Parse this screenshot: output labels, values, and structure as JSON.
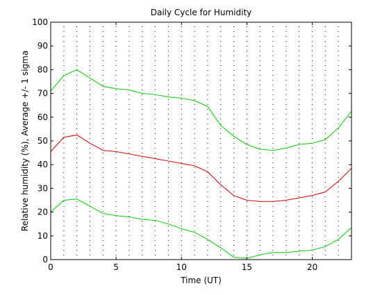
{
  "chart_data": {
    "type": "line",
    "title": "Daily Cycle for Humidity",
    "xlabel": "Time (UT)",
    "ylabel": "Relative humidity (%), Average +/- 1 sigma",
    "xlim": [
      0,
      23
    ],
    "ylim": [
      0,
      100
    ],
    "xticks": [
      0,
      5,
      10,
      15,
      20
    ],
    "yticks": [
      0,
      10,
      20,
      30,
      40,
      50,
      60,
      70,
      80,
      90,
      100
    ],
    "grid": false,
    "scatter_overlay": "dotted vertical column of samples at each hour",
    "x": [
      0,
      1,
      2,
      3,
      4,
      5,
      6,
      7,
      8,
      9,
      10,
      11,
      12,
      13,
      14,
      15,
      16,
      17,
      18,
      19,
      20,
      21,
      22,
      23
    ],
    "series": [
      {
        "role": "average",
        "color": "#cc0000",
        "values": [
          45.5,
          51.5,
          52.5,
          49,
          46,
          45.5,
          44.5,
          43.5,
          42.5,
          41.5,
          40.5,
          39.5,
          37,
          31.5,
          27,
          25,
          24.5,
          24.5,
          25,
          26,
          27,
          28.5,
          33,
          38.5
        ]
      },
      {
        "role": "average + 1 sigma",
        "color": "#00cc00",
        "values": [
          71,
          77.5,
          80,
          76.5,
          73,
          72,
          71.5,
          70,
          69.5,
          68.5,
          68,
          67,
          64.5,
          56.5,
          52,
          48.5,
          46.5,
          46,
          47,
          48.5,
          49,
          50.5,
          55.5,
          62.5
        ]
      },
      {
        "role": "average - 1 sigma",
        "color": "#00cc00",
        "values": [
          20,
          25,
          25.5,
          22.5,
          19.5,
          18.5,
          18,
          17,
          16.5,
          15,
          13,
          11.5,
          8.5,
          5,
          1,
          0.5,
          2,
          3,
          3,
          3.5,
          4,
          5.5,
          8.5,
          13.5
        ]
      }
    ]
  }
}
